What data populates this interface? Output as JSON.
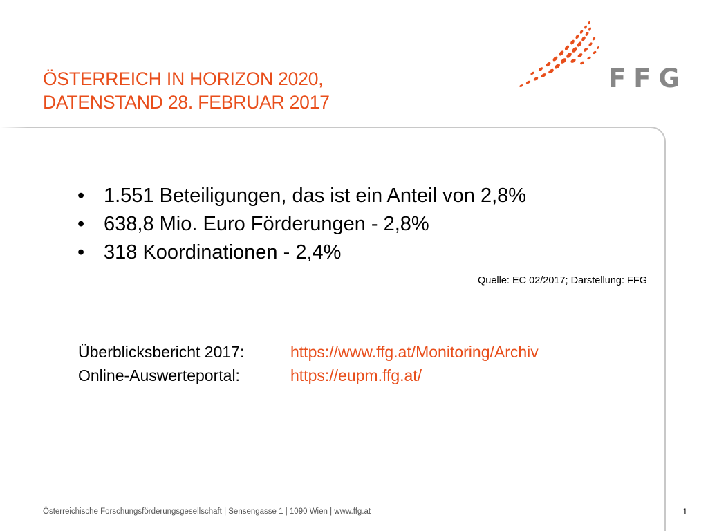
{
  "title": {
    "line1": "ÖSTERREICH IN HORIZON 2020,",
    "line2": "DATENSTAND 28. FEBRUAR 2017"
  },
  "logo": {
    "text": "FFG",
    "icon": "ffg-dot-swoosh-logo",
    "dot_color": "#e84e1b",
    "text_color": "#878787"
  },
  "bullets": [
    {
      "marker": "•",
      "text": "1.551 Beteiligungen, das ist ein Anteil von 2,8%"
    },
    {
      "marker": "•",
      "text": "638,8 Mio. Euro Förderungen - 2,8%"
    },
    {
      "marker": "•",
      "text": "318 Koordinationen - 2,4%"
    }
  ],
  "source": "Quelle: EC 02/2017; Darstellung: FFG",
  "links": [
    {
      "label": "Überblicksbericht 2017:",
      "url": "https://www.ffg.at/Monitoring/Archiv"
    },
    {
      "label": "Online-Auswerteportal:",
      "url": "https://eupm.ffg.at/"
    }
  ],
  "footer": "Österreichische Forschungsförderungsgesellschaft | Sensengasse 1 | 1090 Wien | www.ffg.at",
  "page_number": "1",
  "colors": {
    "accent": "#e84e1b",
    "frame": "#c8c8c8"
  }
}
